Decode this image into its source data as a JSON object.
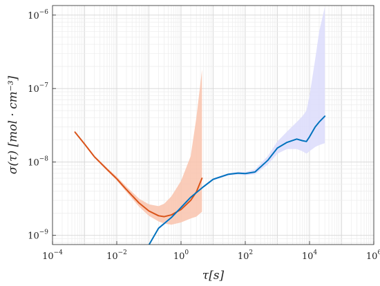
{
  "chart_data": {
    "type": "line",
    "title": "",
    "xlabel": "τ[s]",
    "ylabel": "σ(τ) [mol · cm⁻³]",
    "xscale": "log",
    "yscale": "log",
    "xlim": [
      0.0001,
      1000000
    ],
    "ylim": [
      7.5e-10,
      1.35e-06
    ],
    "grid": true,
    "legend": "none",
    "x_ticks": [
      {
        "base": "10",
        "exp": "−4",
        "value": 0.0001
      },
      {
        "base": "10",
        "exp": "−2",
        "value": 0.01
      },
      {
        "base": "10",
        "exp": "0",
        "value": 1
      },
      {
        "base": "10",
        "exp": "2",
        "value": 100
      },
      {
        "base": "10",
        "exp": "4",
        "value": 10000
      },
      {
        "base": "10",
        "exp": "6",
        "value": 1000000
      }
    ],
    "y_ticks": [
      {
        "base": "10",
        "exp": "−9",
        "value": 1e-09
      },
      {
        "base": "10",
        "exp": "−8",
        "value": 1e-08
      },
      {
        "base": "10",
        "exp": "−7",
        "value": 1e-07
      },
      {
        "base": "10",
        "exp": "−6",
        "value": 1e-06
      }
    ],
    "series": [
      {
        "color": "#d95319",
        "band_color": "#f9c3ad",
        "points": [
          {
            "x": 0.0005,
            "y": 2.55e-08,
            "lo": 2.5e-08,
            "hi": 2.6e-08
          },
          {
            "x": 0.001,
            "y": 1.75e-08,
            "lo": 1.7e-08,
            "hi": 1.8e-08
          },
          {
            "x": 0.002,
            "y": 1.18e-08,
            "lo": 1.14e-08,
            "hi": 1.22e-08
          },
          {
            "x": 0.005,
            "y": 7.9e-09,
            "lo": 7.6e-09,
            "hi": 8.3e-09
          },
          {
            "x": 0.01,
            "y": 5.9e-09,
            "lo": 5.6e-09,
            "hi": 6.3e-09
          },
          {
            "x": 0.02,
            "y": 4.2e-09,
            "lo": 3.9e-09,
            "hi": 4.6e-09
          },
          {
            "x": 0.05,
            "y": 2.75e-09,
            "lo": 2.45e-09,
            "hi": 3.15e-09
          },
          {
            "x": 0.1,
            "y": 2.15e-09,
            "lo": 1.85e-09,
            "hi": 2.65e-09
          },
          {
            "x": 0.2,
            "y": 1.85e-09,
            "lo": 1.55e-09,
            "hi": 2.5e-09
          },
          {
            "x": 0.3,
            "y": 1.8e-09,
            "lo": 1.45e-09,
            "hi": 2.7e-09
          },
          {
            "x": 0.5,
            "y": 1.9e-09,
            "lo": 1.4e-09,
            "hi": 3.4e-09
          },
          {
            "x": 1,
            "y": 2.25e-09,
            "lo": 1.5e-09,
            "hi": 5.5e-09
          },
          {
            "x": 2,
            "y": 3e-09,
            "lo": 1.7e-09,
            "hi": 1.2e-08
          },
          {
            "x": 3,
            "y": 3.9e-09,
            "lo": 1.8e-09,
            "hi": 4e-08
          },
          {
            "x": 4.5,
            "y": 6e-09,
            "lo": 2.1e-09,
            "hi": 1.8e-07
          }
        ]
      },
      {
        "color": "#0072bd",
        "band_color": "#dcdcfb",
        "points": [
          {
            "x": 0.1,
            "y": 7.4e-10,
            "lo": 7.2e-10,
            "hi": 7.6e-10
          },
          {
            "x": 0.2,
            "y": 1.25e-09,
            "lo": 1.2e-09,
            "hi": 1.3e-09
          },
          {
            "x": 0.5,
            "y": 1.75e-09,
            "lo": 1.68e-09,
            "hi": 1.82e-09
          },
          {
            "x": 1,
            "y": 2.4e-09,
            "lo": 2.3e-09,
            "hi": 2.5e-09
          },
          {
            "x": 2,
            "y": 3.3e-09,
            "lo": 3.2e-09,
            "hi": 3.4e-09
          },
          {
            "x": 5,
            "y": 4.6e-09,
            "lo": 4.45e-09,
            "hi": 4.75e-09
          },
          {
            "x": 10,
            "y": 5.8e-09,
            "lo": 5.6e-09,
            "hi": 6e-09
          },
          {
            "x": 30,
            "y": 6.8e-09,
            "lo": 6.55e-09,
            "hi": 7.05e-09
          },
          {
            "x": 60,
            "y": 7.05e-09,
            "lo": 6.75e-09,
            "hi": 7.35e-09
          },
          {
            "x": 100,
            "y": 6.95e-09,
            "lo": 6.6e-09,
            "hi": 7.3e-09
          },
          {
            "x": 200,
            "y": 7.3e-09,
            "lo": 6.8e-09,
            "hi": 7.9e-09
          },
          {
            "x": 500,
            "y": 1.05e-08,
            "lo": 9.2e-09,
            "hi": 1.2e-08
          },
          {
            "x": 1000,
            "y": 1.55e-08,
            "lo": 1.3e-08,
            "hi": 1.9e-08
          },
          {
            "x": 2000,
            "y": 1.85e-08,
            "lo": 1.5e-08,
            "hi": 2.6e-08
          },
          {
            "x": 4000,
            "y": 2.05e-08,
            "lo": 1.5e-08,
            "hi": 3.5e-08
          },
          {
            "x": 6000,
            "y": 1.95e-08,
            "lo": 1.4e-08,
            "hi": 4.2e-08
          },
          {
            "x": 8000,
            "y": 1.9e-08,
            "lo": 1.3e-08,
            "hi": 5e-08
          },
          {
            "x": 10000,
            "y": 2.2e-08,
            "lo": 1.4e-08,
            "hi": 8e-08
          },
          {
            "x": 15000,
            "y": 3e-08,
            "lo": 1.6e-08,
            "hi": 2.5e-07
          },
          {
            "x": 20000,
            "y": 3.5e-08,
            "lo": 1.7e-08,
            "hi": 6e-07
          },
          {
            "x": 30000,
            "y": 4.2e-08,
            "lo": 1.8e-08,
            "hi": 1.3e-06
          }
        ]
      }
    ]
  }
}
